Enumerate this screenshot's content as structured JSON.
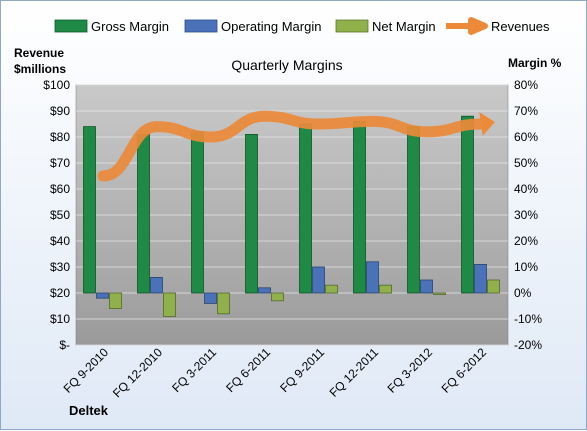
{
  "chart_data": {
    "type": "bar",
    "title": "Quarterly Margins",
    "left_axis_label": [
      "Revenue",
      "$millions"
    ],
    "right_axis_label": "Margin %",
    "brand": "Deltek",
    "categories": [
      "FQ 9-2010",
      "FQ 12-2010",
      "FQ 3-2011",
      "FQ 6-2011",
      "FQ 9-2011",
      "FQ 12-2011",
      "FQ 3-2012",
      "FQ 6-2012"
    ],
    "left_axis": {
      "min": 0,
      "max": 100,
      "step": 10,
      "tick_labels": [
        "$-",
        "$10",
        "$20",
        "$30",
        "$40",
        "$50",
        "$60",
        "$70",
        "$80",
        "$90",
        "$100"
      ]
    },
    "right_axis": {
      "min": -20,
      "max": 80,
      "step": 10,
      "tick_labels": [
        "-20%",
        "-10%",
        "0%",
        "10%",
        "20%",
        "30%",
        "40%",
        "50%",
        "60%",
        "70%",
        "80%"
      ]
    },
    "series": [
      {
        "name": "Gross Margin",
        "axis": "right",
        "kind": "bar",
        "color": "#1f8a45",
        "values": [
          64,
          61,
          62,
          61,
          65,
          66,
          64,
          68
        ]
      },
      {
        "name": "Operating Margin",
        "axis": "right",
        "kind": "bar",
        "color": "#4a72b8",
        "values": [
          -2,
          6,
          -4,
          2,
          10,
          12,
          5,
          11
        ]
      },
      {
        "name": "Net Margin",
        "axis": "right",
        "kind": "bar",
        "color": "#8fb04a",
        "values": [
          -6,
          -9,
          -8,
          -3,
          3,
          3,
          0,
          5
        ]
      },
      {
        "name": "Revenues",
        "axis": "left",
        "kind": "line",
        "color": "#ec8a3a",
        "values": [
          65,
          84,
          80,
          88,
          85,
          86,
          82,
          85
        ]
      }
    ],
    "legend_position": "top",
    "grid": true
  }
}
